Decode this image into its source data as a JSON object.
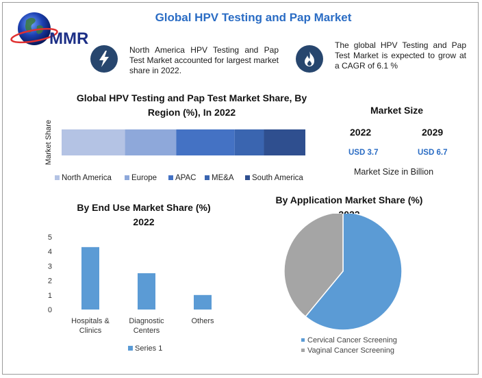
{
  "header": {
    "title": "Global HPV Testing and Pap Market",
    "logo_text": "MMR"
  },
  "features": [
    {
      "icon": "lightning-bolt-icon",
      "text": "North America HPV Testing and Pap Test Market accounted for largest market share in 2022."
    },
    {
      "icon": "flame-icon",
      "text": "The global HPV Testing and Pap Test Market is expected to grow at a CAGR of 6.1 %"
    }
  ],
  "colors": {
    "accent": "#2a6cc4",
    "icon_bg": "#27466e",
    "region": [
      "#b4c3e4",
      "#8ea8da",
      "#4472c4",
      "#3a65b0",
      "#2f4f8f"
    ],
    "end_use_bar": "#5b9bd5",
    "pie": [
      "#5b9bd5",
      "#a5a5a5"
    ]
  },
  "market_size": {
    "title": "Market Size",
    "years": [
      "2022",
      "2029"
    ],
    "values": [
      "USD 3.7",
      "USD 6.7"
    ],
    "note": "Market Size in Billion"
  },
  "chart_data": [
    {
      "type": "bar",
      "orientation": "horizontal-stacked",
      "title": "Global HPV Testing and Pap Test Market Share, By Region (%), In 2022",
      "ylabel": "Market Share",
      "series": [
        {
          "name": "North America",
          "values": [
            26
          ]
        },
        {
          "name": "Europe",
          "values": [
            21
          ]
        },
        {
          "name": "APAC",
          "values": [
            24
          ]
        },
        {
          "name": "ME&A",
          "values": [
            12
          ]
        },
        {
          "name": "South America",
          "values": [
            17
          ]
        }
      ],
      "legend": "bottom"
    },
    {
      "type": "bar",
      "title": "By End Use Market Share (%)",
      "subtitle": "2022",
      "categories": [
        "Hospitals & Clinics",
        "Diagnostic Centers",
        "Others"
      ],
      "series": [
        {
          "name": "Series 1",
          "values": [
            4.3,
            2.5,
            1.0
          ]
        }
      ],
      "yticks": [
        "0",
        "1",
        "2",
        "3",
        "4",
        "5"
      ],
      "ylim": [
        0,
        5
      ],
      "grid": false,
      "legend": "bottom"
    },
    {
      "type": "pie",
      "title": "By Application Market Share (%)",
      "subtitle": "2022",
      "labels": [
        "Cervical Cancer Screening",
        "Vaginal Cancer Screening"
      ],
      "values": [
        61,
        39
      ],
      "legend": "bottom"
    }
  ]
}
